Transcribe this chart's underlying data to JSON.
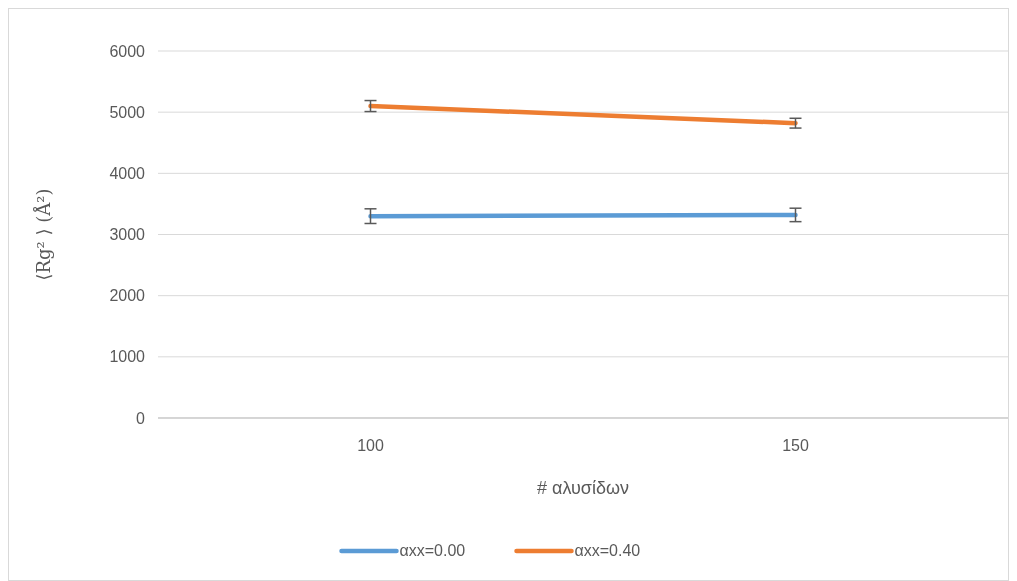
{
  "chart_data": {
    "type": "line",
    "xlabel": "# αλυσίδων",
    "ylabel": "⟨Rg² ⟩ (Å²)",
    "categories": [
      "100",
      "150"
    ],
    "series": [
      {
        "name": "αxx=0.00",
        "color": "#5b9bd5",
        "values": [
          3300,
          3320
        ],
        "errors": [
          120,
          110
        ]
      },
      {
        "name": "αxx=0.40",
        "color": "#ed7d31",
        "values": [
          5100,
          4820
        ],
        "errors": [
          90,
          80
        ]
      }
    ],
    "ylim": [
      0,
      6000
    ],
    "yticks": [
      0,
      1000,
      2000,
      3000,
      4000,
      5000,
      6000
    ],
    "grid": "y",
    "legend": "bottom",
    "marker": "none",
    "line_style": "solid"
  }
}
